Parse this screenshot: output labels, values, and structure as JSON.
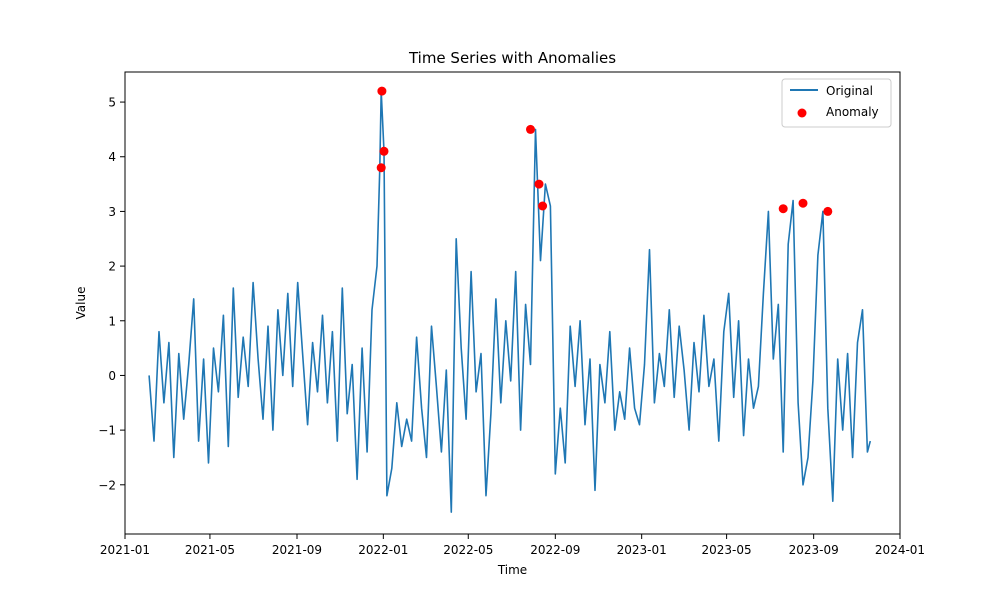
{
  "chart_data": {
    "type": "line",
    "title": "Time Series with Anomalies",
    "xlabel": "Time",
    "ylabel": "Value",
    "xlim": [
      "2021-01-01",
      "2024-01-01"
    ],
    "ylim": [
      -2.9,
      5.55
    ],
    "x_ticks": [
      "2021-01",
      "2021-05",
      "2021-09",
      "2022-01",
      "2022-05",
      "2022-09",
      "2023-01",
      "2023-05",
      "2023-09",
      "2024-01"
    ],
    "y_ticks": [
      -2,
      -1,
      0,
      1,
      2,
      3,
      4,
      5
    ],
    "legend": {
      "position": "top-right",
      "entries": [
        "Original",
        "Anomaly"
      ]
    },
    "colors": {
      "line": "#1f77b4",
      "anomaly": "#ff0000"
    },
    "series": [
      {
        "name": "Original",
        "x": [
          "2021-02-04",
          "2021-02-11",
          "2021-02-18",
          "2021-02-25",
          "2021-03-04",
          "2021-03-11",
          "2021-03-18",
          "2021-03-25",
          "2021-04-01",
          "2021-04-08",
          "2021-04-15",
          "2021-04-22",
          "2021-04-29",
          "2021-05-06",
          "2021-05-13",
          "2021-05-20",
          "2021-05-27",
          "2021-06-03",
          "2021-06-10",
          "2021-06-17",
          "2021-06-24",
          "2021-07-01",
          "2021-07-08",
          "2021-07-15",
          "2021-07-22",
          "2021-07-29",
          "2021-08-05",
          "2021-08-12",
          "2021-08-19",
          "2021-08-26",
          "2021-09-02",
          "2021-09-09",
          "2021-09-16",
          "2021-09-23",
          "2021-09-30",
          "2021-10-07",
          "2021-10-14",
          "2021-10-21",
          "2021-10-28",
          "2021-11-04",
          "2021-11-11",
          "2021-11-18",
          "2021-11-25",
          "2021-12-02",
          "2021-12-09",
          "2021-12-16",
          "2021-12-23",
          "2021-12-27",
          "2021-12-29",
          "2022-01-02",
          "2022-01-06",
          "2022-01-13",
          "2022-01-20",
          "2022-01-27",
          "2022-02-03",
          "2022-02-10",
          "2022-02-17",
          "2022-02-24",
          "2022-03-03",
          "2022-03-10",
          "2022-03-17",
          "2022-03-24",
          "2022-03-31",
          "2022-04-07",
          "2022-04-14",
          "2022-04-21",
          "2022-04-28",
          "2022-05-05",
          "2022-05-12",
          "2022-05-19",
          "2022-05-26",
          "2022-06-02",
          "2022-06-09",
          "2022-06-16",
          "2022-06-23",
          "2022-06-30",
          "2022-07-07",
          "2022-07-14",
          "2022-07-21",
          "2022-07-28",
          "2022-08-04",
          "2022-08-11",
          "2022-08-18",
          "2022-08-25",
          "2022-09-01",
          "2022-09-08",
          "2022-09-15",
          "2022-09-22",
          "2022-09-29",
          "2022-10-06",
          "2022-10-13",
          "2022-10-20",
          "2022-10-27",
          "2022-11-03",
          "2022-11-10",
          "2022-11-17",
          "2022-11-24",
          "2022-12-01",
          "2022-12-08",
          "2022-12-15",
          "2022-12-22",
          "2022-12-29",
          "2023-01-05",
          "2023-01-12",
          "2023-01-19",
          "2023-01-26",
          "2023-02-02",
          "2023-02-09",
          "2023-02-16",
          "2023-02-23",
          "2023-03-02",
          "2023-03-09",
          "2023-03-16",
          "2023-03-23",
          "2023-03-30",
          "2023-04-06",
          "2023-04-13",
          "2023-04-20",
          "2023-04-27",
          "2023-05-04",
          "2023-05-11",
          "2023-05-18",
          "2023-05-25",
          "2023-06-01",
          "2023-06-08",
          "2023-06-15",
          "2023-06-22",
          "2023-06-29",
          "2023-07-06",
          "2023-07-13",
          "2023-07-20",
          "2023-07-27",
          "2023-08-03",
          "2023-08-10",
          "2023-08-17",
          "2023-08-24",
          "2023-08-31",
          "2023-09-07",
          "2023-09-14",
          "2023-09-21",
          "2023-09-28",
          "2023-10-05",
          "2023-10-12",
          "2023-10-19",
          "2023-10-26",
          "2023-11-02",
          "2023-11-09",
          "2023-11-16",
          "2023-11-20"
        ],
        "values": [
          0.0,
          -1.2,
          0.8,
          -0.5,
          0.6,
          -1.5,
          0.4,
          -0.8,
          0.2,
          1.4,
          -1.2,
          0.3,
          -1.6,
          0.5,
          -0.3,
          1.1,
          -1.3,
          1.6,
          -0.4,
          0.7,
          -0.2,
          1.7,
          0.3,
          -0.8,
          0.9,
          -1.0,
          1.2,
          0.0,
          1.5,
          -0.2,
          1.7,
          0.4,
          -0.9,
          0.6,
          -0.3,
          1.1,
          -0.5,
          0.8,
          -1.2,
          1.6,
          -0.7,
          0.2,
          -1.9,
          0.5,
          -1.4,
          1.2,
          2.0,
          3.8,
          5.2,
          4.1,
          -2.2,
          -1.7,
          -0.5,
          -1.3,
          -0.8,
          -1.2,
          0.7,
          -0.6,
          -1.5,
          0.9,
          -0.2,
          -1.4,
          0.1,
          -2.5,
          2.5,
          0.5,
          -0.8,
          1.9,
          -0.3,
          0.4,
          -2.2,
          -0.7,
          1.4,
          -0.5,
          1.0,
          -0.1,
          1.9,
          -1.0,
          1.3,
          0.2,
          4.5,
          2.1,
          3.5,
          3.1,
          -1.8,
          -0.6,
          -1.6,
          0.9,
          -0.2,
          1.0,
          -0.9,
          0.3,
          -2.1,
          0.2,
          -0.5,
          0.8,
          -1.0,
          -0.3,
          -0.8,
          0.5,
          -0.6,
          -0.9,
          0.2,
          2.3,
          -0.5,
          0.4,
          -0.2,
          1.2,
          -0.4,
          0.9,
          0.1,
          -1.0,
          0.6,
          -0.3,
          1.1,
          -0.2,
          0.3,
          -1.2,
          0.8,
          1.5,
          -0.4,
          1.0,
          -1.1,
          0.3,
          -0.6,
          -0.2,
          1.5,
          3.0,
          0.3,
          1.3,
          -1.4,
          2.4,
          3.2,
          -0.5,
          -2.0,
          -1.5,
          -0.1,
          2.2,
          3.0,
          -0.6,
          -2.3,
          0.3,
          -1.0,
          0.4,
          -1.5,
          0.6,
          1.2,
          -1.4,
          -1.2
        ]
      },
      {
        "name": "Anomaly",
        "x": [
          "2021-12-29",
          "2021-12-30",
          "2022-01-02",
          "2022-07-28",
          "2022-08-09",
          "2022-08-14",
          "2023-07-20",
          "2023-08-17",
          "2023-09-21"
        ],
        "values": [
          3.8,
          5.2,
          4.1,
          4.5,
          3.5,
          3.1,
          3.05,
          3.15,
          3.0
        ]
      }
    ]
  }
}
